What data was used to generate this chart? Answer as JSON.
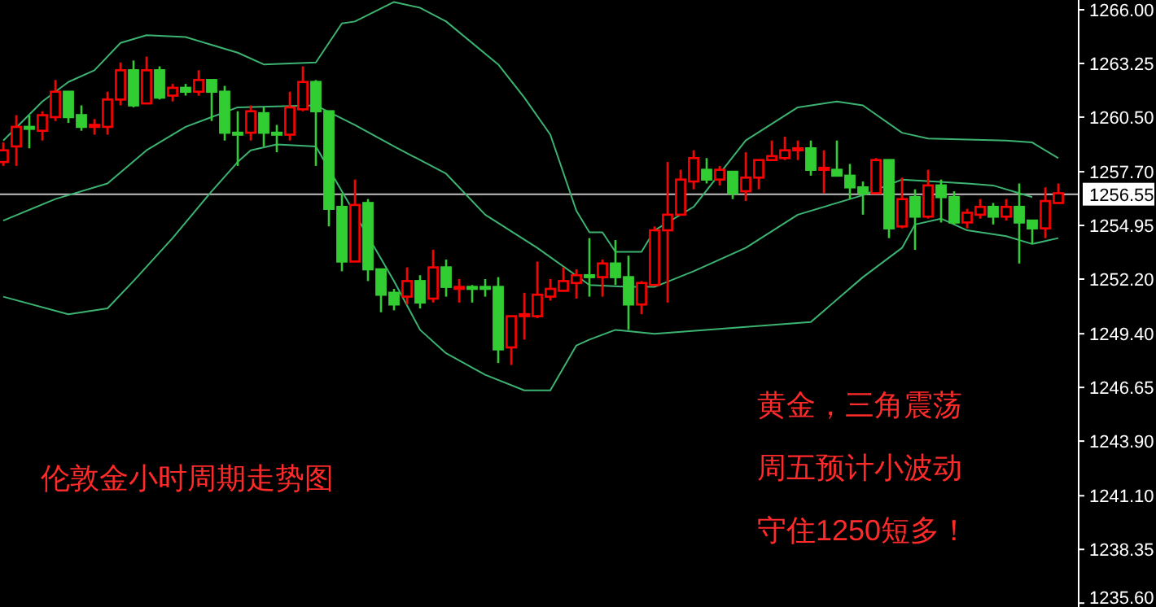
{
  "chart_data": {
    "type": "candlestick",
    "categories": [
      null,
      null,
      null,
      null,
      null,
      null,
      null,
      null,
      null,
      null,
      null,
      null,
      null,
      null,
      null,
      null,
      null,
      null,
      null,
      null,
      null,
      null,
      null,
      null,
      null,
      null,
      null,
      null,
      null,
      null,
      null,
      null,
      null,
      null,
      null,
      null,
      null,
      null,
      null,
      null,
      null,
      null,
      null,
      null,
      null,
      null,
      null,
      null,
      null,
      null,
      null,
      null,
      null,
      null,
      null,
      null,
      null,
      null,
      null,
      null,
      null,
      null,
      null,
      null,
      null,
      null,
      null,
      null,
      null,
      null,
      null,
      null,
      null,
      null,
      null,
      null,
      null,
      null,
      null,
      null,
      null,
      null
    ],
    "ohlc": [
      [
        1258.2,
        1259.2,
        1258.0,
        1258.8
      ],
      [
        1259.0,
        1260.6,
        1258.0,
        1260.0
      ],
      [
        1260.0,
        1260.6,
        1258.9,
        1259.9
      ],
      [
        1259.8,
        1260.8,
        1259.3,
        1260.6
      ],
      [
        1260.5,
        1262.4,
        1260.3,
        1261.8
      ],
      [
        1261.8,
        1261.8,
        1260.2,
        1260.5
      ],
      [
        1260.6,
        1261.1,
        1259.8,
        1260.0
      ],
      [
        1260.0,
        1260.4,
        1259.6,
        1260.1
      ],
      [
        1260.0,
        1261.8,
        1259.6,
        1261.4
      ],
      [
        1261.4,
        1263.3,
        1261.1,
        1262.9
      ],
      [
        1262.9,
        1263.4,
        1261.0,
        1261.1
      ],
      [
        1261.2,
        1263.6,
        1261.2,
        1262.9
      ],
      [
        1262.9,
        1263.1,
        1261.4,
        1261.5
      ],
      [
        1261.6,
        1262.2,
        1261.3,
        1262.0
      ],
      [
        1262.0,
        1262.2,
        1261.6,
        1261.8
      ],
      [
        1261.8,
        1262.9,
        1261.6,
        1262.4
      ],
      [
        1262.4,
        1262.4,
        1260.3,
        1261.8
      ],
      [
        1261.8,
        1262.1,
        1259.3,
        1259.7
      ],
      [
        1259.7,
        1260.8,
        1258.0,
        1259.6
      ],
      [
        1259.7,
        1261.1,
        1259.3,
        1260.8
      ],
      [
        1260.7,
        1261.0,
        1259.0,
        1259.7
      ],
      [
        1259.7,
        1260.1,
        1258.7,
        1259.6
      ],
      [
        1259.6,
        1261.8,
        1259.3,
        1261.0
      ],
      [
        1260.9,
        1263.1,
        1260.8,
        1262.3
      ],
      [
        1262.3,
        1262.4,
        1258.0,
        1260.8
      ],
      [
        1260.8,
        1260.8,
        1254.9,
        1255.8
      ],
      [
        1255.9,
        1256.6,
        1252.6,
        1253.1
      ],
      [
        1253.1,
        1257.3,
        1253.1,
        1256.0
      ],
      [
        1256.1,
        1256.3,
        1252.1,
        1252.7
      ],
      [
        1252.7,
        1252.7,
        1250.5,
        1251.4
      ],
      [
        1251.5,
        1251.7,
        1250.6,
        1250.9
      ],
      [
        1251.3,
        1252.8,
        1250.9,
        1252.1
      ],
      [
        1252.1,
        1252.4,
        1250.7,
        1251.0
      ],
      [
        1251.2,
        1253.7,
        1251.0,
        1252.8
      ],
      [
        1252.8,
        1253.2,
        1251.3,
        1251.8
      ],
      [
        1251.7,
        1252.2,
        1251.0,
        1251.8
      ],
      [
        1251.8,
        1251.9,
        1251.0,
        1251.7
      ],
      [
        1251.8,
        1252.2,
        1251.3,
        1251.7
      ],
      [
        1251.8,
        1252.3,
        1247.9,
        1248.6
      ],
      [
        1248.7,
        1250.3,
        1247.8,
        1250.3
      ],
      [
        1250.3,
        1251.5,
        1249.1,
        1250.4
      ],
      [
        1250.3,
        1253.1,
        1250.2,
        1251.4
      ],
      [
        1251.3,
        1252.2,
        1251.1,
        1251.7
      ],
      [
        1251.6,
        1252.8,
        1251.6,
        1252.1
      ],
      [
        1252.0,
        1252.7,
        1251.2,
        1252.4
      ],
      [
        1252.4,
        1254.3,
        1251.3,
        1252.3
      ],
      [
        1252.3,
        1253.2,
        1251.3,
        1253.0
      ],
      [
        1253.0,
        1254.2,
        1251.9,
        1252.3
      ],
      [
        1252.3,
        1253.4,
        1249.6,
        1250.9
      ],
      [
        1250.9,
        1252.1,
        1250.4,
        1252.0
      ],
      [
        1251.9,
        1254.9,
        1251.9,
        1254.7
      ],
      [
        1254.7,
        1258.2,
        1251.0,
        1255.5
      ],
      [
        1255.5,
        1257.8,
        1255.5,
        1257.3
      ],
      [
        1257.2,
        1258.8,
        1256.8,
        1258.4
      ],
      [
        1257.8,
        1258.4,
        1257.1,
        1257.3
      ],
      [
        1257.3,
        1258.0,
        1257.0,
        1257.8
      ],
      [
        1257.7,
        1257.7,
        1256.3,
        1256.6
      ],
      [
        1256.7,
        1258.7,
        1256.2,
        1257.4
      ],
      [
        1257.4,
        1258.3,
        1256.8,
        1258.3
      ],
      [
        1258.3,
        1259.3,
        1258.3,
        1258.5
      ],
      [
        1258.4,
        1259.5,
        1258.3,
        1258.8
      ],
      [
        1258.8,
        1259.3,
        1258.3,
        1258.9
      ],
      [
        1258.9,
        1259.3,
        1257.5,
        1257.8
      ],
      [
        1257.8,
        1258.8,
        1256.6,
        1257.9
      ],
      [
        1257.8,
        1259.3,
        1257.5,
        1257.5
      ],
      [
        1257.5,
        1258.1,
        1256.3,
        1256.9
      ],
      [
        1256.9,
        1257.2,
        1255.5,
        1256.6
      ],
      [
        1256.6,
        1258.4,
        1256.6,
        1258.3
      ],
      [
        1258.3,
        1258.3,
        1254.3,
        1254.8
      ],
      [
        1254.9,
        1257.4,
        1254.8,
        1256.3
      ],
      [
        1256.4,
        1256.8,
        1253.7,
        1255.4
      ],
      [
        1255.4,
        1257.8,
        1255.3,
        1257.0
      ],
      [
        1257.0,
        1257.3,
        1255.1,
        1256.4
      ],
      [
        1256.4,
        1256.7,
        1255.0,
        1255.1
      ],
      [
        1255.1,
        1255.8,
        1254.8,
        1255.6
      ],
      [
        1255.5,
        1256.3,
        1255.3,
        1255.9
      ],
      [
        1255.9,
        1256.1,
        1255.0,
        1255.4
      ],
      [
        1255.4,
        1256.3,
        1255.2,
        1255.9
      ],
      [
        1255.9,
        1257.1,
        1253.0,
        1255.1
      ],
      [
        1255.2,
        1255.2,
        1254.0,
        1254.8
      ],
      [
        1254.8,
        1256.9,
        1254.3,
        1256.2
      ],
      [
        1256.1,
        1257.1,
        1256.1,
        1256.6
      ]
    ],
    "colors": [
      "#ff0000",
      "#ff0000",
      "#32cd32",
      "#ff0000",
      "#ff0000",
      "#32cd32",
      "#32cd32",
      "#ff0000",
      "#ff0000",
      "#ff0000",
      "#32cd32",
      "#ff0000",
      "#32cd32",
      "#ff0000",
      "#32cd32",
      "#ff0000",
      "#32cd32",
      "#32cd32",
      "#32cd32",
      "#ff0000",
      "#32cd32",
      "#32cd32",
      "#ff0000",
      "#ff0000",
      "#32cd32",
      "#32cd32",
      "#32cd32",
      "#ff0000",
      "#32cd32",
      "#32cd32",
      "#32cd32",
      "#ff0000",
      "#32cd32",
      "#ff0000",
      "#32cd32",
      "#ff0000",
      "#32cd32",
      "#32cd32",
      "#32cd32",
      "#ff0000",
      "#ff0000",
      "#ff0000",
      "#ff0000",
      "#ff0000",
      "#ff0000",
      "#32cd32",
      "#ff0000",
      "#32cd32",
      "#32cd32",
      "#ff0000",
      "#ff0000",
      "#ff0000",
      "#ff0000",
      "#ff0000",
      "#32cd32",
      "#ff0000",
      "#32cd32",
      "#ff0000",
      "#ff0000",
      "#ff0000",
      "#ff0000",
      "#ff0000",
      "#32cd32",
      "#ff0000",
      "#32cd32",
      "#32cd32",
      "#32cd32",
      "#ff0000",
      "#32cd32",
      "#ff0000",
      "#32cd32",
      "#ff0000",
      "#32cd32",
      "#32cd32",
      "#ff0000",
      "#ff0000",
      "#32cd32",
      "#ff0000",
      "#32cd32",
      "#32cd32",
      "#ff0000",
      "#ff0000"
    ],
    "series": [
      {
        "type": "line",
        "color": "#3cb371",
        "values": [
          1259.3,
          null,
          null,
          1261.3,
          null,
          1262.3,
          null,
          1262.9,
          null,
          1264.3,
          null,
          1264.7,
          null,
          null,
          1264.6,
          null,
          null,
          null,
          1263.8,
          null,
          1263.2,
          null,
          null,
          null,
          1263.3,
          null,
          1265.3,
          1265.4,
          null,
          null,
          1266.4,
          null,
          1266.1,
          null,
          1265.4,
          null,
          null,
          null,
          1263.2,
          null,
          1261.5,
          null,
          1259.6,
          null,
          1255.7,
          1254.6,
          1254.6,
          1253.6,
          null,
          1253.6,
          1254.7,
          null,
          null,
          1255.9,
          null,
          null,
          null,
          1259.3,
          null,
          null,
          null,
          1261.0,
          null,
          null,
          1261.3,
          null,
          1261.1,
          null,
          null,
          1259.7,
          null,
          1259.4,
          null,
          null,
          null,
          null,
          null,
          1259.3,
          null,
          1259.2,
          null,
          1258.4
        ]
      },
      {
        "type": "line",
        "color": "#3cb371",
        "values": [
          1255.2,
          null,
          null,
          null,
          1256.3,
          null,
          null,
          null,
          1257.1,
          null,
          null,
          1258.8,
          null,
          null,
          1260.0,
          null,
          null,
          null,
          1261.0,
          null,
          null,
          null,
          null,
          null,
          1261.1,
          null,
          null,
          1260.1,
          null,
          null,
          1259.0,
          null,
          null,
          null,
          1257.6,
          null,
          null,
          1255.5,
          null,
          null,
          null,
          1253.8,
          null,
          null,
          null,
          1251.9,
          null,
          null,
          1251.8,
          null,
          1251.8,
          null,
          null,
          1252.6,
          null,
          null,
          null,
          1253.8,
          null,
          null,
          null,
          1255.5,
          null,
          null,
          null,
          null,
          1256.5,
          null,
          null,
          1257.3,
          null,
          null,
          null,
          null,
          1257.1,
          null,
          1257.0,
          null,
          null,
          1256.4,
          null,
          null
        ]
      },
      {
        "type": "line",
        "color": "#3cb371",
        "values": [
          1251.3,
          null,
          null,
          null,
          null,
          1250.4,
          null,
          null,
          1250.7,
          null,
          1252.1,
          null,
          null,
          1254.3,
          null,
          null,
          1256.7,
          null,
          1258.2,
          1258.8,
          null,
          1259.1,
          null,
          null,
          1259.0,
          null,
          null,
          null,
          null,
          null,
          1252.1,
          null,
          1249.6,
          null,
          1248.4,
          null,
          null,
          1247.3,
          null,
          null,
          1246.5,
          null,
          1246.5,
          null,
          1248.8,
          1249.1,
          null,
          1249.6,
          null,
          null,
          1249.4,
          null,
          null,
          null,
          null,
          null,
          null,
          null,
          null,
          null,
          null,
          null,
          1250.0,
          null,
          null,
          null,
          1252.3,
          null,
          null,
          1253.8,
          1255.0,
          null,
          1255.3,
          null,
          1254.7,
          null,
          null,
          1254.4,
          null,
          1254.0,
          null,
          1254.3
        ]
      }
    ],
    "ylim": [
      1235.4,
      1266.5
    ],
    "yticks": [
      {
        "value": 1266.0,
        "label": "1266.00"
      },
      {
        "value": 1263.25,
        "label": "1263.25"
      },
      {
        "value": 1260.5,
        "label": "1260.50"
      },
      {
        "value": 1257.7,
        "label": "1257.70"
      },
      {
        "value": 1254.95,
        "label": "1254.95"
      },
      {
        "value": 1252.2,
        "label": "1252.20"
      },
      {
        "value": 1249.4,
        "label": "1249.40"
      },
      {
        "value": 1246.65,
        "label": "1246.65"
      },
      {
        "value": 1243.9,
        "label": "1243.90"
      },
      {
        "value": 1241.1,
        "label": "1241.10"
      },
      {
        "value": 1238.35,
        "label": "1238.35"
      },
      {
        "value": 1235.6,
        "label": "1235.60"
      }
    ],
    "ref_lines": [
      {
        "axis": "y",
        "value": 1256.55,
        "label": "1256.55",
        "color": "#c0c0c0"
      }
    ],
    "annotations": [
      "伦敦金小时周期走势图",
      "黄金，三角震荡",
      "周五预计小波动",
      "守住1250短多！"
    ]
  }
}
